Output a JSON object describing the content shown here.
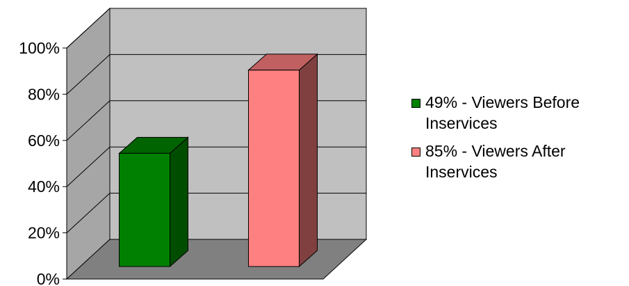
{
  "chart_data": {
    "type": "bar",
    "categories": [
      "49% - Viewers Before Inservices",
      "85% - Viewers After Inservices"
    ],
    "values": [
      49,
      85
    ],
    "colors": [
      "#008000",
      "#ff8080"
    ],
    "title": "",
    "xlabel": "",
    "ylabel": "",
    "ylim": [
      0,
      100
    ],
    "ytick_labels": [
      "0%",
      "20%",
      "40%",
      "60%",
      "80%",
      "100%"
    ],
    "grid": true,
    "legend_position": "right",
    "style": "3d"
  }
}
